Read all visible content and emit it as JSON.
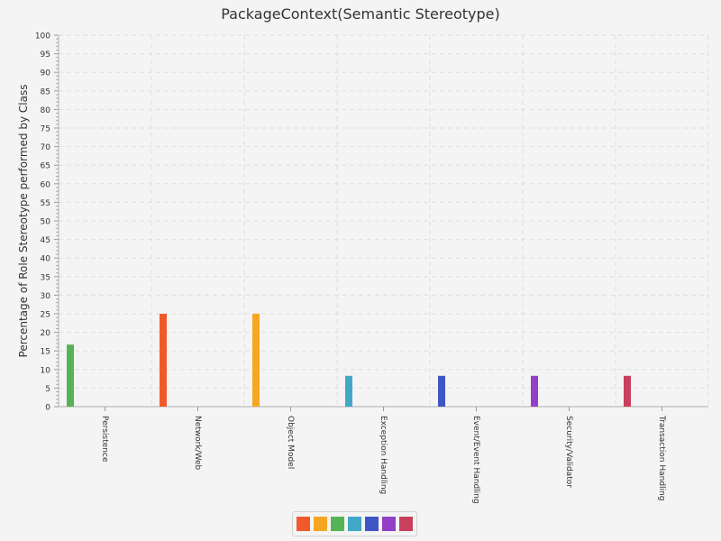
{
  "chart_data": {
    "type": "bar",
    "title": "PackageContext(Semantic Stereotype)",
    "xlabel": "",
    "ylabel": "Percentage of Role Stereotype performed by Class",
    "ylim": [
      0,
      100
    ],
    "ytick_step": 5,
    "yticks": [
      "0",
      "5",
      "10",
      "15",
      "20",
      "25",
      "30",
      "35",
      "40",
      "45",
      "50",
      "55",
      "60",
      "65",
      "70",
      "75",
      "80",
      "85",
      "90",
      "95",
      "100"
    ],
    "grid": true,
    "legend_position": "bottom-center",
    "categories": [
      "Persistence",
      "Network/Web",
      "Object Model",
      "Exception Handling",
      "Event/Event Handling",
      "Security/Validator",
      "Transaction Handling"
    ],
    "values": [
      16.7,
      25,
      25,
      8.3,
      8.3,
      8.3,
      8.3
    ],
    "bar_colors": [
      "#56b356",
      "#f05a2a",
      "#f6a623",
      "#41a8c8",
      "#3f56c4",
      "#9340c8",
      "#c8405e"
    ],
    "legend_colors": [
      "#f05a2a",
      "#f6a623",
      "#56b356",
      "#41a8c8",
      "#3f56c4",
      "#9340c8",
      "#c8405e"
    ],
    "series": []
  }
}
